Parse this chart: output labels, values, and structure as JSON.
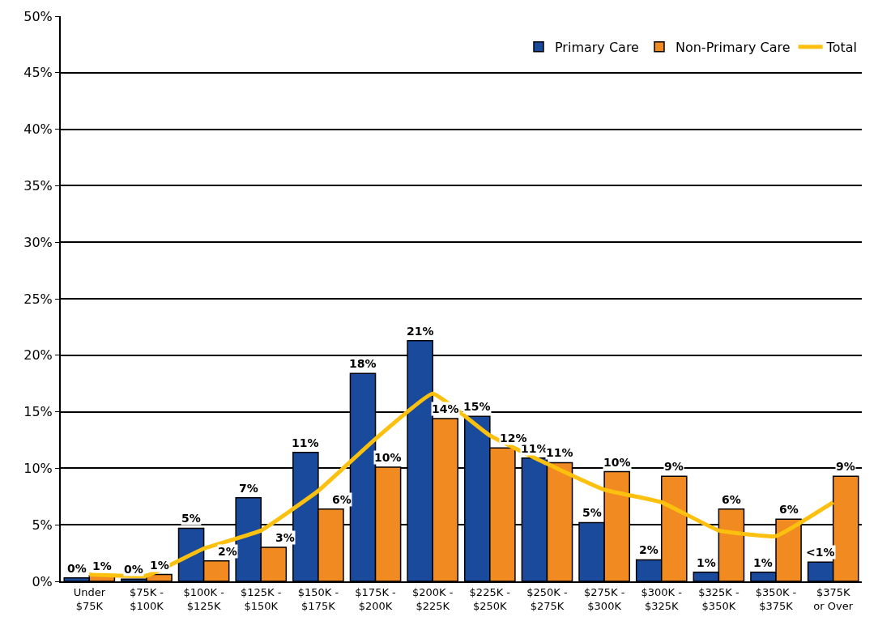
{
  "chart_data": {
    "type": "bar",
    "categories": [
      "Under $75K",
      "$75K - $100K",
      "$100K - $125K",
      "$125K - $150K",
      "$150K - $175K",
      "$175K - $200K",
      "$200K - $225K",
      "$225K - $250K",
      "$250K - $275K",
      "$275K - $300K",
      "$300K - $325K",
      "$325K - $350K",
      "$350K - $375K",
      "$375K or Over"
    ],
    "series": [
      {
        "name": "Primary Care",
        "color": "#1a4a9c",
        "values": [
          0.3,
          0.2,
          4.7,
          7.4,
          11.4,
          18.4,
          21.3,
          14.6,
          10.9,
          5.2,
          1.9,
          0.8,
          0.8,
          1.7
        ],
        "value_labels": [
          "0%",
          "0%",
          "5%",
          "7%",
          "11%",
          "18%",
          "21%",
          "15%",
          "11%",
          "5%",
          "2%",
          "1%",
          "1%",
          "<1%"
        ]
      },
      {
        "name": "Non-Primary Care",
        "color": "#f28a22",
        "values": [
          0.5,
          0.6,
          1.8,
          3.0,
          6.4,
          10.1,
          14.4,
          11.8,
          10.5,
          9.7,
          9.3,
          6.4,
          5.5,
          9.3
        ],
        "value_labels": [
          "1%",
          "1%",
          "2%",
          "3%",
          "6%",
          "10%",
          "14%",
          "12%",
          "11%",
          "10%",
          "9%",
          "6%",
          "6%",
          "9%"
        ]
      },
      {
        "name": "Total",
        "type": "line",
        "color": "#fcc00e",
        "values": [
          0.6,
          0.5,
          2.9,
          4.5,
          8.0,
          12.6,
          16.6,
          12.9,
          10.4,
          8.1,
          7.0,
          4.5,
          4.0,
          7.0
        ]
      }
    ],
    "ylim": [
      0,
      50
    ],
    "yticks": [
      {
        "value": 0,
        "label": "0%"
      },
      {
        "value": 5,
        "label": "5%"
      },
      {
        "value": 10,
        "label": "10%"
      },
      {
        "value": 15,
        "label": "15%"
      },
      {
        "value": 20,
        "label": "20%"
      },
      {
        "value": 25,
        "label": "25%"
      },
      {
        "value": 30,
        "label": "30%"
      },
      {
        "value": 35,
        "label": "35%"
      },
      {
        "value": 40,
        "label": "40%"
      },
      {
        "value": 45,
        "label": "45%"
      },
      {
        "value": 50,
        "label": "50%"
      }
    ],
    "grid": "y",
    "legend": "top right",
    "line_style": "solid",
    "marker": "none"
  }
}
